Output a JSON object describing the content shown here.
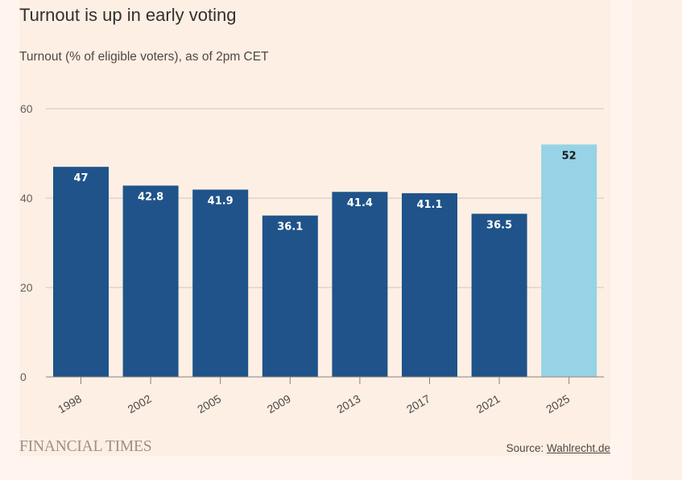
{
  "chart_data": {
    "type": "bar",
    "title": "Turnout is up in early voting",
    "subtitle": "Turnout (% of eligible voters), as of 2pm CET",
    "xlabel": "",
    "ylabel": "",
    "categories": [
      "1998",
      "2002",
      "2005",
      "2009",
      "2013",
      "2017",
      "2021",
      "2025"
    ],
    "values": [
      47,
      42.8,
      41.9,
      36.1,
      41.4,
      41.1,
      36.5,
      52
    ],
    "data_labels": [
      "47",
      "42.8",
      "41.9",
      "36.1",
      "41.4",
      "41.1",
      "36.5",
      "52"
    ],
    "highlight_index": 7,
    "ylim": [
      0,
      60
    ],
    "yticks": [
      0,
      20,
      40,
      60
    ],
    "ytick_labels": [
      "0",
      "20",
      "40",
      "60"
    ],
    "grid": true,
    "legend": "none",
    "colors": {
      "bar": "#1f538a",
      "highlight": "#96d3e6",
      "label_on_bar": "#ffffff",
      "label_on_highlight": "#1a1a1a",
      "grid": "#d1c5bb",
      "axis": "#8c837d"
    }
  },
  "footer": {
    "brand": "FINANCIAL TIMES",
    "source_prefix": "Source: ",
    "source_link": "Wahlrecht.de"
  }
}
